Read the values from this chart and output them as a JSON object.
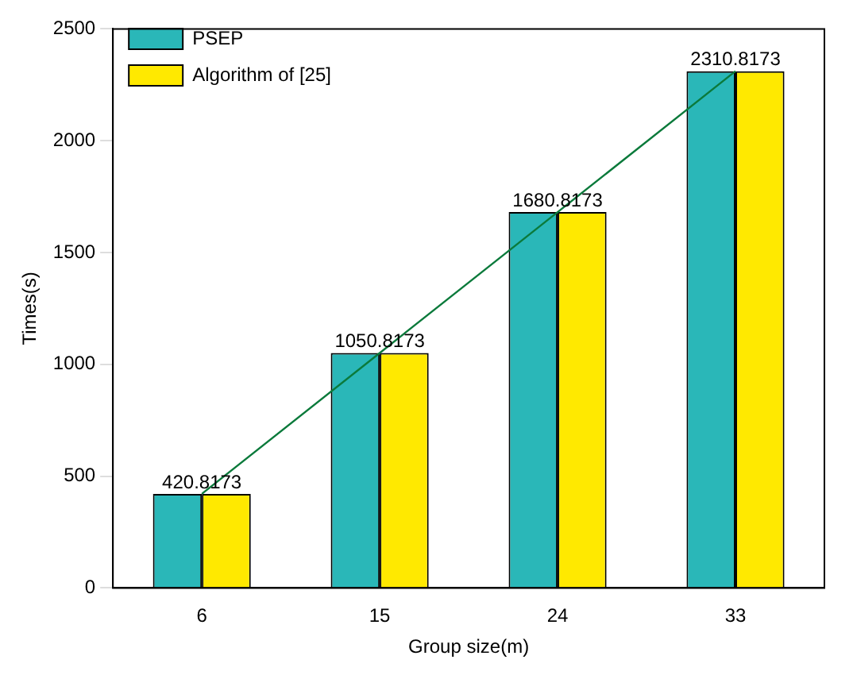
{
  "chart_data": {
    "type": "bar",
    "xlabel": "Group size(m)",
    "ylabel": "Times(s)",
    "categories": [
      "6",
      "15",
      "24",
      "33"
    ],
    "series": [
      {
        "name": "PSEP",
        "color": "#2ab7b8",
        "values": [
          420.8173,
          1050.8173,
          1680.8173,
          2310.8173
        ]
      },
      {
        "name": "Algorithm of [25]",
        "color": "#ffe900",
        "values": [
          420.8173,
          1050.8173,
          1680.8173,
          2310.8173
        ]
      },
      {
        "type": "line",
        "color": "#0b7a3b",
        "values": [
          420.8173,
          1050.8173,
          1680.8173,
          2310.8173
        ],
        "value_labels": [
          "420.8173",
          "1050.8173",
          "1680.8173",
          "2310.8173"
        ],
        "marker": "none",
        "line_style": "solid"
      }
    ],
    "ylim": [
      0,
      2500
    ],
    "yticks": [
      0,
      500,
      1000,
      1500,
      2000,
      2500
    ],
    "grid": false,
    "legend": "top left"
  }
}
